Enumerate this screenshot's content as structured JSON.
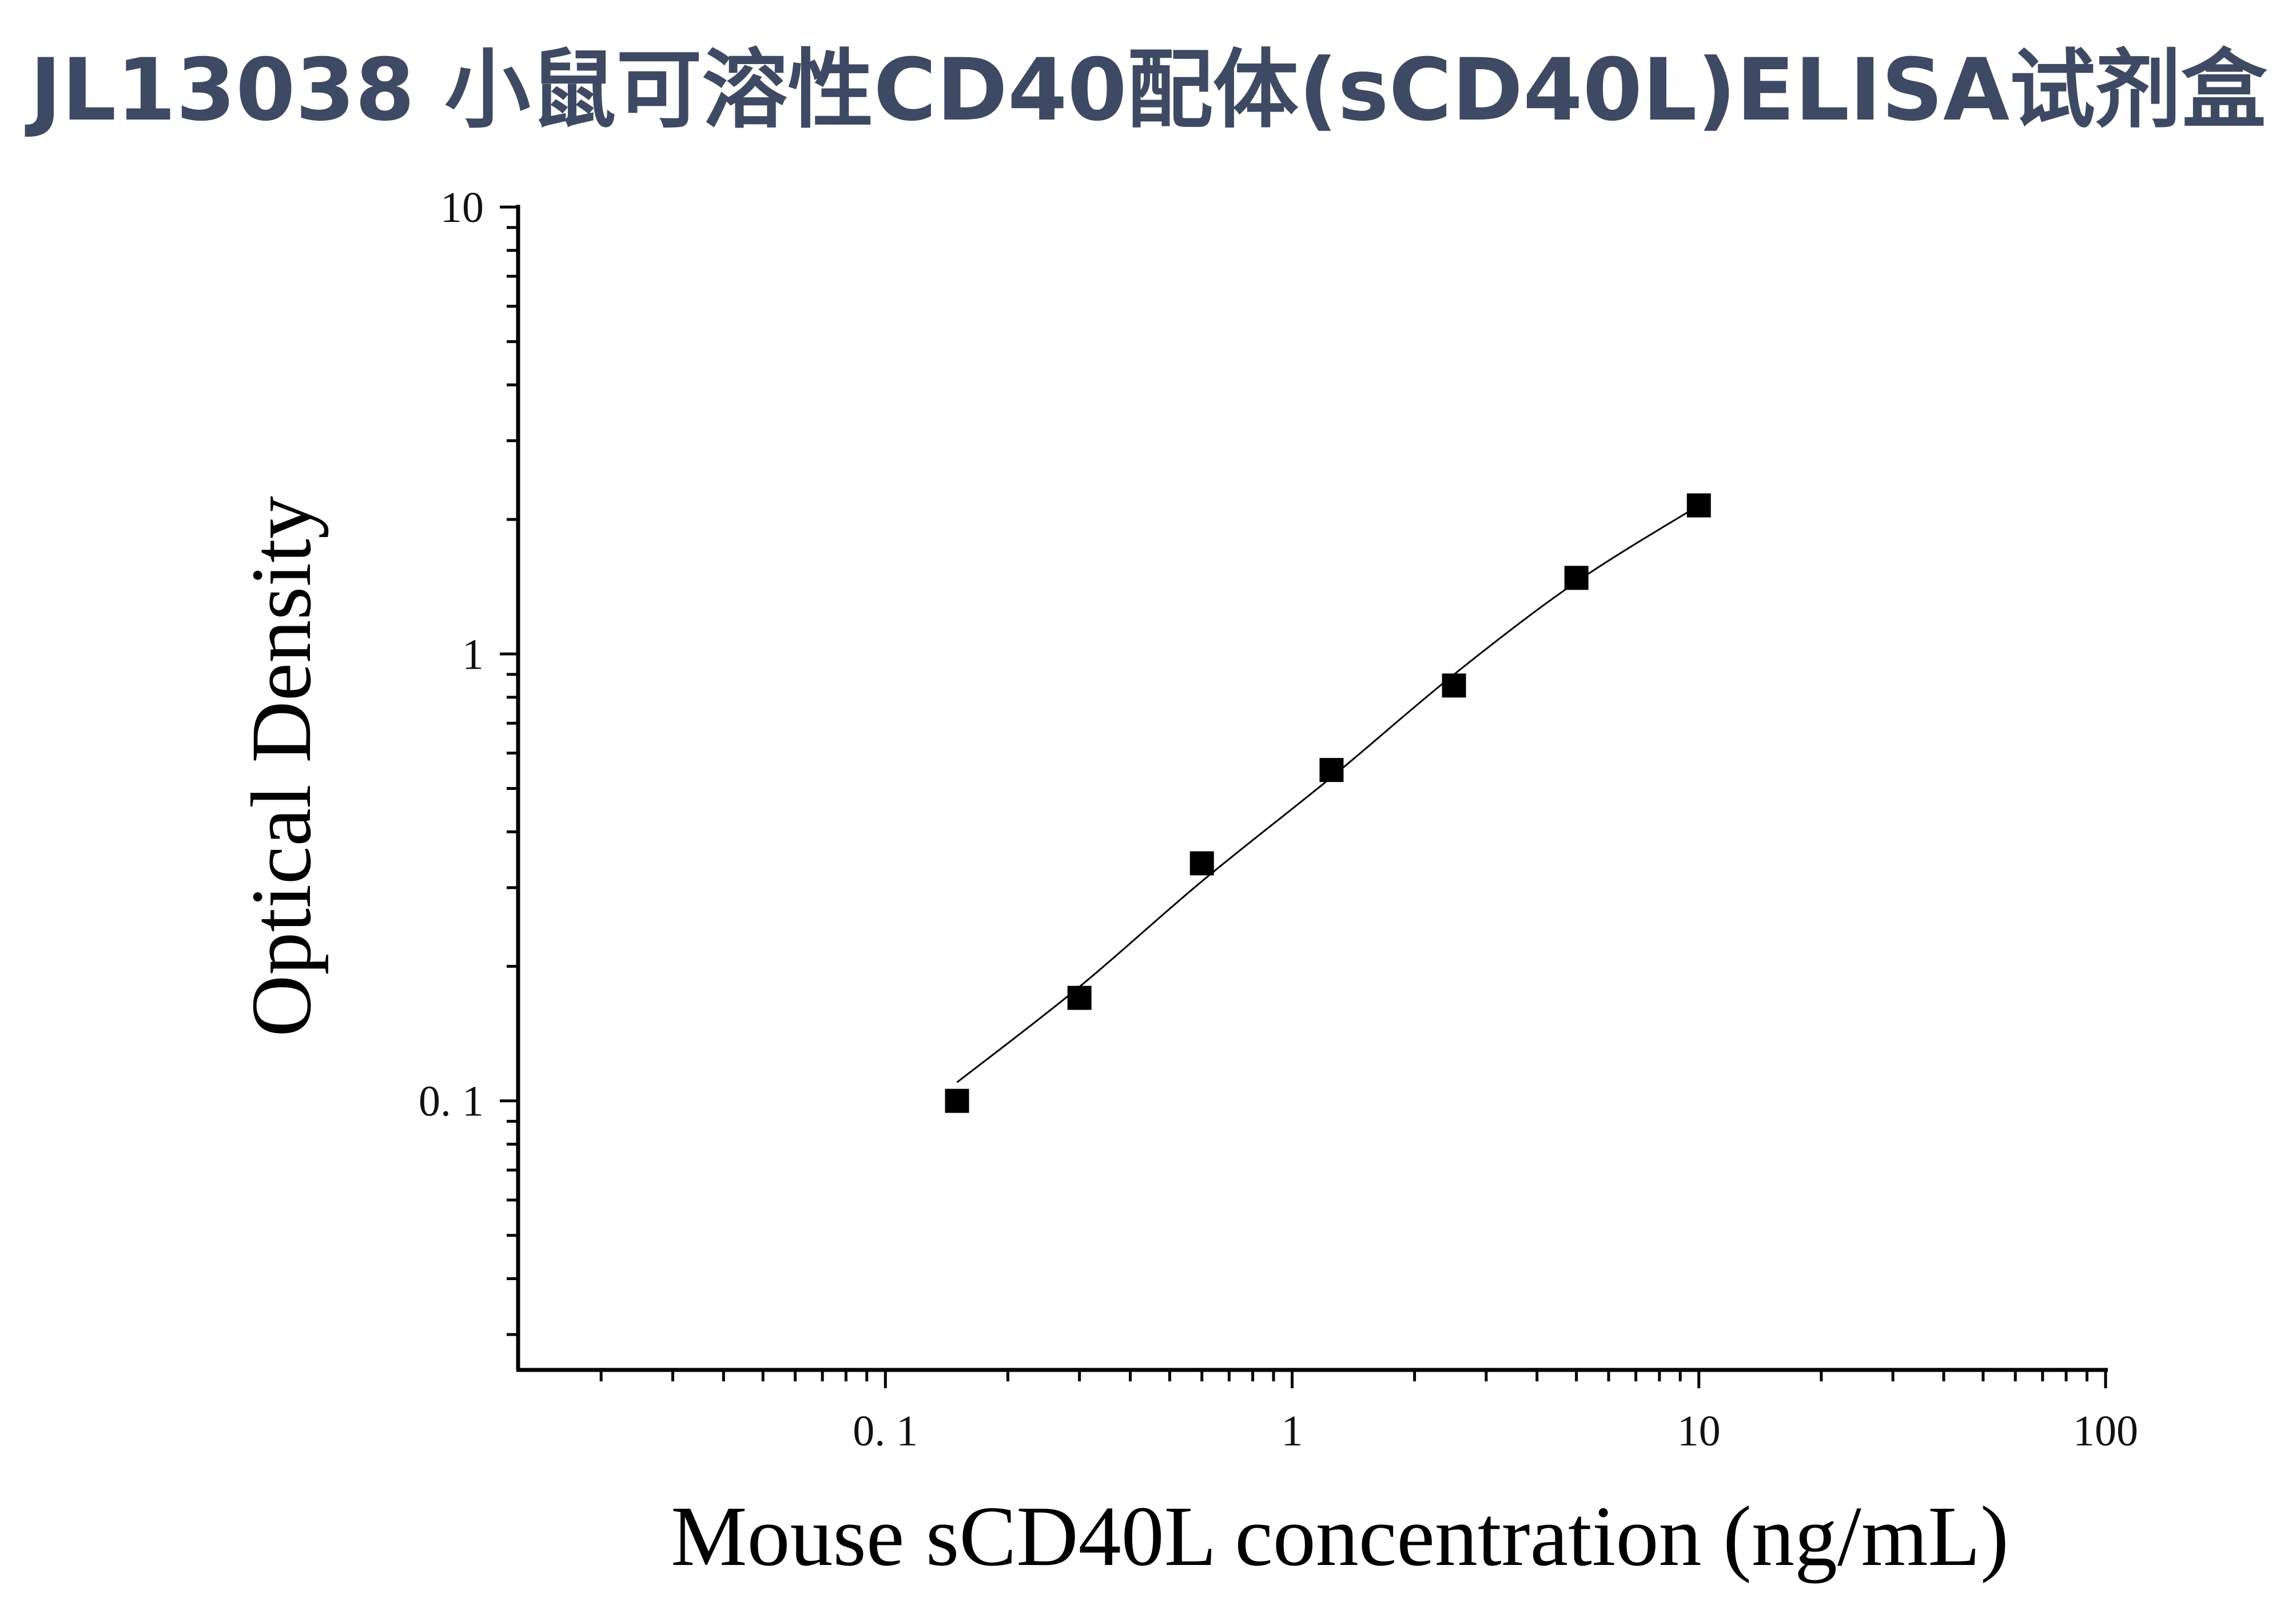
{
  "title": "JL13038 小鼠可溶性CD40配体(sCD40L)ELISA试剂盒",
  "chart_data": {
    "type": "scatter",
    "xlabel": "Mouse sCD40L concentration (ng/mL)",
    "ylabel": "Optical Density",
    "xscale": "log",
    "yscale": "log",
    "xlim": [
      0.0125,
      100
    ],
    "ylim": [
      0.025,
      10
    ],
    "x_ticks": [
      {
        "value": 0.1,
        "label": "0. 1"
      },
      {
        "value": 1,
        "label": "1"
      },
      {
        "value": 10,
        "label": "10"
      },
      {
        "value": 100,
        "label": "100"
      }
    ],
    "y_ticks": [
      {
        "value": 0.1,
        "label": "0. 1"
      },
      {
        "value": 1,
        "label": "1"
      },
      {
        "value": 10,
        "label": "10"
      }
    ],
    "series": [
      {
        "marker": "square",
        "color": "#000000",
        "x": [
          0.15,
          0.3,
          0.6,
          1.25,
          2.5,
          5,
          10
        ],
        "y": [
          0.1,
          0.17,
          0.34,
          0.55,
          0.85,
          1.48,
          2.15
        ]
      }
    ],
    "fit_curve": {
      "color": "#000000",
      "x": [
        0.15,
        0.3,
        0.6,
        1.25,
        2.5,
        5,
        10
      ],
      "y": [
        0.11,
        0.18,
        0.31,
        0.53,
        0.9,
        1.45,
        2.15
      ]
    },
    "grid": false
  }
}
